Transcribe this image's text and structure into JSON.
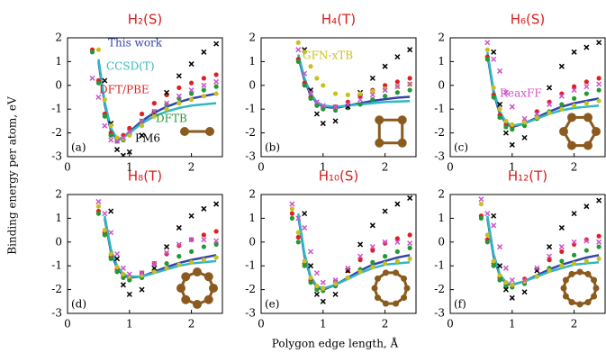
{
  "ylabel": "Binding energy per atom, eV",
  "xlabel": "Polygon edge length, Å",
  "chart_data": [
    {
      "type": "line",
      "title": "H₂(S)",
      "annotation": "(a)",
      "xlim": [
        0,
        2.5
      ],
      "xticks": [
        0,
        1,
        2
      ],
      "ylim": [
        -3,
        2
      ],
      "yticks": [
        -3,
        -2,
        -1,
        0,
        1,
        2
      ],
      "x": [
        0.4,
        0.5,
        0.6,
        0.7,
        0.8,
        0.9,
        1.0,
        1.2,
        1.4,
        1.6,
        1.8,
        2.0,
        2.2,
        2.4
      ],
      "series": [
        {
          "name": "This work",
          "color": "#3344aa",
          "style": "line",
          "values": [
            null,
            1.0,
            -0.8,
            -1.9,
            -2.3,
            -2.2,
            -1.95,
            -1.5,
            -1.15,
            -0.9,
            -0.7,
            -0.55,
            -0.45,
            -0.35
          ]
        },
        {
          "name": "CCSD(T)",
          "color": "#30b8c0",
          "style": "line",
          "values": [
            null,
            1.1,
            -0.7,
            -1.8,
            -2.25,
            -2.2,
            -2.0,
            -1.6,
            -1.3,
            -1.1,
            -0.95,
            -0.85,
            -0.8,
            -0.75
          ]
        },
        {
          "name": "DFT/PBE",
          "color": "#e02020",
          "style": "dot",
          "values": [
            1.5,
            0.2,
            -1.2,
            -2.0,
            -2.25,
            -2.1,
            -1.8,
            -1.2,
            -0.75,
            -0.4,
            -0.1,
            0.1,
            0.3,
            0.45
          ]
        },
        {
          "name": "DFTB",
          "color": "#229933",
          "style": "dot",
          "values": [
            1.4,
            0.1,
            -1.3,
            -2.1,
            -2.35,
            -2.3,
            -2.05,
            -1.5,
            -1.1,
            -0.8,
            -0.55,
            -0.35,
            -0.2,
            -0.05
          ]
        },
        {
          "name": "PM6",
          "color": "#000000",
          "style": "cross",
          "values": [
            null,
            null,
            0.2,
            -1.6,
            -2.7,
            -2.95,
            -2.8,
            -2.1,
            -1.2,
            -0.3,
            0.4,
            0.9,
            1.4,
            1.75
          ]
        },
        {
          "color": "#c8c020",
          "style": "dot",
          "values": [
            null,
            1.5,
            -0.6,
            -1.7,
            -2.2,
            -2.25,
            -2.1,
            -1.7,
            -1.3,
            -1.0,
            -0.75,
            -0.6,
            -0.45,
            -0.35
          ]
        },
        {
          "color": "#cc55cc",
          "style": "cross",
          "values": [
            0.3,
            -0.5,
            -1.7,
            -2.3,
            -2.35,
            -2.2,
            -1.95,
            -1.5,
            -1.1,
            -0.75,
            -0.45,
            -0.2,
            0.0,
            0.15
          ]
        }
      ]
    },
    {
      "type": "line",
      "title": "H₄(T)",
      "annotation": "(b)",
      "xlim": [
        0,
        2.5
      ],
      "xticks": [
        0,
        1,
        2
      ],
      "ylim": [
        -3,
        2
      ],
      "yticks": [
        -3,
        -2,
        -1,
        0,
        1,
        2
      ],
      "x": [
        0.4,
        0.5,
        0.6,
        0.7,
        0.8,
        0.9,
        1.0,
        1.2,
        1.4,
        1.6,
        1.8,
        2.0,
        2.2,
        2.4
      ],
      "series": [
        {
          "color": "#3344aa",
          "style": "line",
          "values": [
            null,
            null,
            1.2,
            0.2,
            -0.4,
            -0.75,
            -0.9,
            -0.95,
            -0.85,
            -0.75,
            -0.65,
            -0.58,
            -0.52,
            -0.48
          ]
        },
        {
          "color": "#30b8c0",
          "style": "line",
          "values": [
            null,
            null,
            1.3,
            0.3,
            -0.35,
            -0.7,
            -0.85,
            -0.9,
            -0.85,
            -0.8,
            -0.75,
            -0.7,
            -0.68,
            -0.66
          ]
        },
        {
          "color": "#e02020",
          "style": "dot",
          "values": [
            null,
            null,
            1.1,
            0.1,
            -0.5,
            -0.8,
            -0.95,
            -0.9,
            -0.7,
            -0.45,
            -0.2,
            0.0,
            0.15,
            0.3
          ]
        },
        {
          "color": "#229933",
          "style": "dot",
          "values": [
            null,
            null,
            1.0,
            0.0,
            -0.55,
            -0.85,
            -1.0,
            -1.05,
            -0.95,
            -0.8,
            -0.6,
            -0.45,
            -0.3,
            -0.2
          ]
        },
        {
          "color": "#000000",
          "style": "cross",
          "values": [
            null,
            null,
            null,
            1.5,
            -0.2,
            -1.2,
            -1.6,
            -1.5,
            -0.9,
            -0.3,
            0.3,
            0.8,
            1.2,
            1.5
          ]
        },
        {
          "name": "GFN-xTB",
          "color": "#c8c020",
          "style": "dot",
          "values": [
            null,
            null,
            1.8,
            1.4,
            0.8,
            0.3,
            0.0,
            -0.35,
            -0.4,
            -0.35,
            -0.25,
            -0.15,
            -0.05,
            0.05
          ]
        },
        {
          "color": "#cc55cc",
          "style": "cross",
          "values": [
            null,
            null,
            1.5,
            0.5,
            -0.3,
            -0.7,
            -0.85,
            -0.9,
            -0.8,
            -0.6,
            -0.4,
            -0.2,
            -0.05,
            0.05
          ]
        }
      ]
    },
    {
      "type": "line",
      "title": "H₆(S)",
      "annotation": "(c)",
      "xlim": [
        0,
        2.5
      ],
      "xticks": [
        0,
        1,
        2
      ],
      "ylim": [
        -3,
        2
      ],
      "yticks": [
        -3,
        -2,
        -1,
        0,
        1,
        2
      ],
      "x": [
        0.4,
        0.5,
        0.6,
        0.7,
        0.8,
        0.9,
        1.0,
        1.2,
        1.4,
        1.6,
        1.8,
        2.0,
        2.2,
        2.4
      ],
      "series": [
        {
          "color": "#3344aa",
          "style": "line",
          "values": [
            null,
            null,
            1.3,
            -0.3,
            -1.2,
            -1.6,
            -1.75,
            -1.6,
            -1.35,
            -1.1,
            -0.9,
            -0.75,
            -0.65,
            -0.55
          ]
        },
        {
          "color": "#30b8c0",
          "style": "line",
          "values": [
            null,
            null,
            1.4,
            -0.2,
            -1.1,
            -1.55,
            -1.7,
            -1.6,
            -1.4,
            -1.2,
            -1.05,
            -0.95,
            -0.9,
            -0.85
          ]
        },
        {
          "color": "#e02020",
          "style": "dot",
          "values": [
            null,
            null,
            1.2,
            -0.4,
            -1.25,
            -1.65,
            -1.75,
            -1.5,
            -1.1,
            -0.7,
            -0.35,
            -0.05,
            0.15,
            0.3
          ]
        },
        {
          "color": "#229933",
          "style": "dot",
          "values": [
            null,
            null,
            1.1,
            -0.5,
            -1.35,
            -1.75,
            -1.85,
            -1.7,
            -1.4,
            -1.1,
            -0.8,
            -0.55,
            -0.35,
            -0.2
          ]
        },
        {
          "color": "#000000",
          "style": "cross",
          "values": [
            null,
            null,
            null,
            1.4,
            -0.8,
            -2.0,
            -2.5,
            -2.2,
            -1.2,
            -0.1,
            0.8,
            1.4,
            1.6,
            1.8
          ]
        },
        {
          "color": "#c8c020",
          "style": "dot",
          "values": [
            null,
            null,
            1.5,
            -0.1,
            -1.0,
            -1.5,
            -1.65,
            -1.55,
            -1.35,
            -1.15,
            -1.0,
            -0.85,
            -0.75,
            -0.65
          ]
        },
        {
          "name": "ReaxFF",
          "color": "#cc55cc",
          "style": "cross",
          "values": [
            null,
            null,
            1.8,
            1.1,
            0.6,
            -0.3,
            -0.9,
            -1.4,
            -1.2,
            -0.8,
            -0.45,
            -0.2,
            -0.05,
            0.05
          ]
        }
      ]
    },
    {
      "type": "line",
      "title": "H₈(T)",
      "annotation": "(d)",
      "xlim": [
        0,
        2.5
      ],
      "xticks": [
        0,
        1,
        2
      ],
      "ylim": [
        -3,
        2
      ],
      "yticks": [
        -3,
        -2,
        -1,
        0,
        1,
        2
      ],
      "x": [
        0.4,
        0.5,
        0.6,
        0.7,
        0.8,
        0.9,
        1.0,
        1.2,
        1.4,
        1.6,
        1.8,
        2.0,
        2.2,
        2.4
      ],
      "series": [
        {
          "color": "#3344aa",
          "style": "line",
          "values": [
            null,
            null,
            1.0,
            -0.4,
            -1.1,
            -1.4,
            -1.5,
            -1.45,
            -1.25,
            -1.05,
            -0.88,
            -0.75,
            -0.65,
            -0.55
          ]
        },
        {
          "color": "#30b8c0",
          "style": "line",
          "values": [
            null,
            null,
            1.1,
            -0.3,
            -1.0,
            -1.35,
            -1.45,
            -1.45,
            -1.3,
            -1.15,
            -1.0,
            -0.9,
            -0.85,
            -0.8
          ]
        },
        {
          "color": "#e02020",
          "style": "dot",
          "values": [
            null,
            1.3,
            0.4,
            -0.6,
            -1.15,
            -1.4,
            -1.5,
            -1.3,
            -0.9,
            -0.5,
            -0.15,
            0.1,
            0.3,
            0.45
          ]
        },
        {
          "color": "#229933",
          "style": "dot",
          "values": [
            null,
            1.2,
            0.3,
            -0.7,
            -1.25,
            -1.5,
            -1.6,
            -1.5,
            -1.2,
            -0.9,
            -0.6,
            -0.4,
            -0.2,
            -0.1
          ]
        },
        {
          "color": "#000000",
          "style": "cross",
          "values": [
            null,
            null,
            null,
            1.3,
            -0.7,
            -1.8,
            -2.2,
            -2.0,
            -1.1,
            -0.2,
            0.6,
            1.1,
            1.4,
            1.6
          ]
        },
        {
          "color": "#c8c020",
          "style": "dot",
          "values": [
            null,
            1.5,
            0.5,
            -0.5,
            -1.05,
            -1.35,
            -1.45,
            -1.4,
            -1.25,
            -1.1,
            -0.95,
            -0.85,
            -0.75,
            -0.65
          ]
        },
        {
          "color": "#cc55cc",
          "style": "cross",
          "values": [
            null,
            1.7,
            1.2,
            0.4,
            -0.5,
            -1.1,
            -1.35,
            -1.3,
            -0.9,
            -0.45,
            -0.1,
            0.1,
            0.1,
            0.05
          ]
        }
      ]
    },
    {
      "type": "line",
      "title": "H₁₀(S)",
      "annotation": "(e)",
      "xlim": [
        0,
        2.5
      ],
      "xticks": [
        0,
        1,
        2
      ],
      "ylim": [
        -3,
        2
      ],
      "yticks": [
        -3,
        -2,
        -1,
        0,
        1,
        2
      ],
      "x": [
        0.4,
        0.5,
        0.6,
        0.7,
        0.8,
        0.9,
        1.0,
        1.2,
        1.4,
        1.6,
        1.8,
        2.0,
        2.2,
        2.4
      ],
      "series": [
        {
          "color": "#3344aa",
          "style": "line",
          "values": [
            null,
            null,
            1.1,
            -0.6,
            -1.5,
            -1.9,
            -2.0,
            -1.8,
            -1.5,
            -1.2,
            -0.95,
            -0.8,
            -0.65,
            -0.55
          ]
        },
        {
          "color": "#30b8c0",
          "style": "line",
          "values": [
            null,
            null,
            1.2,
            -0.5,
            -1.45,
            -1.85,
            -1.95,
            -1.8,
            -1.55,
            -1.3,
            -1.1,
            -0.95,
            -0.9,
            -0.85
          ]
        },
        {
          "color": "#e02020",
          "style": "dot",
          "values": [
            null,
            1.2,
            0.2,
            -0.9,
            -1.6,
            -1.9,
            -1.95,
            -1.65,
            -1.2,
            -0.75,
            -0.35,
            -0.05,
            0.15,
            0.3
          ]
        },
        {
          "color": "#229933",
          "style": "dot",
          "values": [
            null,
            1.0,
            0.0,
            -1.0,
            -1.7,
            -2.0,
            -2.05,
            -1.85,
            -1.5,
            -1.15,
            -0.85,
            -0.6,
            -0.4,
            -0.25
          ]
        },
        {
          "color": "#000000",
          "style": "cross",
          "values": [
            null,
            null,
            null,
            1.2,
            -1.0,
            -2.2,
            -2.5,
            -2.2,
            -1.2,
            -0.1,
            0.7,
            1.3,
            1.6,
            1.85
          ]
        },
        {
          "color": "#c8c020",
          "style": "dot",
          "values": [
            null,
            1.4,
            0.4,
            -0.8,
            -1.5,
            -1.85,
            -1.95,
            -1.75,
            -1.5,
            -1.25,
            -1.05,
            -0.9,
            -0.8,
            -0.7
          ]
        },
        {
          "color": "#cc55cc",
          "style": "cross",
          "values": [
            null,
            1.6,
            1.0,
            0.6,
            -0.4,
            -1.3,
            -1.7,
            -1.6,
            -1.1,
            -0.6,
            -0.2,
            0.0,
            0.0,
            -0.05
          ]
        }
      ]
    },
    {
      "type": "line",
      "title": "H₁₂(T)",
      "annotation": "(f)",
      "xlim": [
        0,
        2.5
      ],
      "xticks": [
        0,
        1,
        2
      ],
      "ylim": [
        -3,
        2
      ],
      "yticks": [
        -3,
        -2,
        -1,
        0,
        1,
        2
      ],
      "x": [
        0.4,
        0.5,
        0.6,
        0.7,
        0.8,
        0.9,
        1.0,
        1.2,
        1.4,
        1.6,
        1.8,
        2.0,
        2.2,
        2.4
      ],
      "series": [
        {
          "color": "#3344aa",
          "style": "line",
          "values": [
            null,
            null,
            1.0,
            -0.6,
            -1.4,
            -1.75,
            -1.8,
            -1.65,
            -1.4,
            -1.15,
            -0.95,
            -0.8,
            -0.65,
            -0.55
          ]
        },
        {
          "color": "#30b8c0",
          "style": "line",
          "values": [
            null,
            null,
            1.1,
            -0.5,
            -1.35,
            -1.7,
            -1.78,
            -1.65,
            -1.45,
            -1.25,
            -1.1,
            -0.95,
            -0.9,
            -0.85
          ]
        },
        {
          "color": "#e02020",
          "style": "dot",
          "values": [
            null,
            1.1,
            0.1,
            -0.9,
            -1.5,
            -1.75,
            -1.8,
            -1.55,
            -1.15,
            -0.75,
            -0.4,
            -0.1,
            0.1,
            0.25
          ]
        },
        {
          "color": "#229933",
          "style": "dot",
          "values": [
            null,
            1.0,
            0.0,
            -1.0,
            -1.6,
            -1.85,
            -1.9,
            -1.75,
            -1.45,
            -1.1,
            -0.8,
            -0.55,
            -0.35,
            -0.2
          ]
        },
        {
          "color": "#000000",
          "style": "cross",
          "values": [
            null,
            null,
            null,
            1.1,
            -1.0,
            -2.0,
            -2.35,
            -2.1,
            -1.2,
            -0.2,
            0.6,
            1.2,
            1.5,
            1.75
          ]
        },
        {
          "color": "#c8c020",
          "style": "dot",
          "values": [
            null,
            1.6,
            0.3,
            -0.8,
            -1.4,
            -1.7,
            -1.8,
            -1.65,
            -1.45,
            -1.2,
            -1.0,
            -0.9,
            -0.8,
            -0.7
          ]
        },
        {
          "color": "#cc55cc",
          "style": "cross",
          "values": [
            null,
            1.8,
            1.2,
            0.7,
            -0.2,
            -1.1,
            -1.6,
            -1.6,
            -1.1,
            -0.6,
            -0.2,
            0.0,
            0.05,
            0.0
          ]
        }
      ]
    }
  ]
}
